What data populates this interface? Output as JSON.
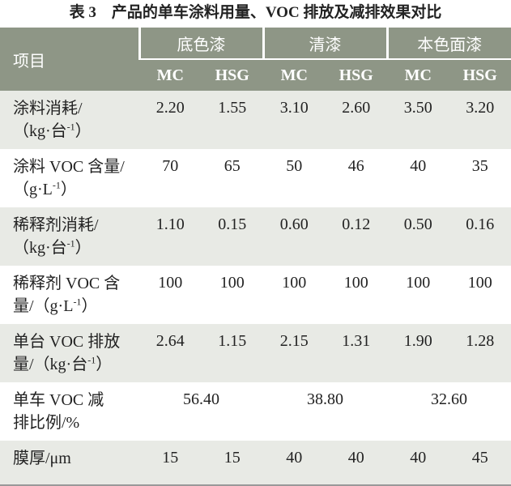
{
  "title": "表 3　产品的单车涂料用量、VOC 排放及减排效果对比",
  "table": {
    "corner": "项目",
    "groups": [
      "底色漆",
      "清漆",
      "本色面漆"
    ],
    "subheaders": [
      "MC",
      "HSG",
      "MC",
      "HSG",
      "MC",
      "HSG"
    ],
    "rows": [
      {
        "label": [
          [
            "涂料消耗/"
          ],
          [
            "（kg·台",
            "-1",
            "）"
          ]
        ],
        "cells": [
          "2.20",
          "1.55",
          "3.10",
          "2.60",
          "3.50",
          "3.20"
        ]
      },
      {
        "label": [
          [
            "涂料 VOC 含量/"
          ],
          [
            "（g·L",
            "-1",
            "）"
          ]
        ],
        "cells": [
          "70",
          "65",
          "50",
          "46",
          "40",
          "35"
        ]
      },
      {
        "label": [
          [
            "稀释剂消耗/"
          ],
          [
            "（kg·台",
            "-1",
            "）"
          ]
        ],
        "cells": [
          "1.10",
          "0.15",
          "0.60",
          "0.12",
          "0.50",
          "0.16"
        ]
      },
      {
        "label": [
          [
            "稀释剂 VOC 含"
          ],
          [
            "量/（g·L",
            "-1",
            "）"
          ]
        ],
        "cells": [
          "100",
          "100",
          "100",
          "100",
          "100",
          "100"
        ]
      },
      {
        "label": [
          [
            "单台 VOC 排放"
          ],
          [
            "量/（kg·台",
            "-1",
            "）"
          ]
        ],
        "cells": [
          "2.64",
          "1.15",
          "2.15",
          "1.31",
          "1.90",
          "1.28"
        ]
      },
      {
        "label": [
          [
            "单车 VOC 减"
          ],
          [
            "排比例/%"
          ]
        ],
        "cells": [
          "56.40",
          "38.80",
          "32.60"
        ]
      },
      {
        "label": [
          [
            "膜厚/μm"
          ]
        ],
        "cells": [
          "15",
          "15",
          "40",
          "40",
          "40",
          "45"
        ]
      }
    ]
  }
}
